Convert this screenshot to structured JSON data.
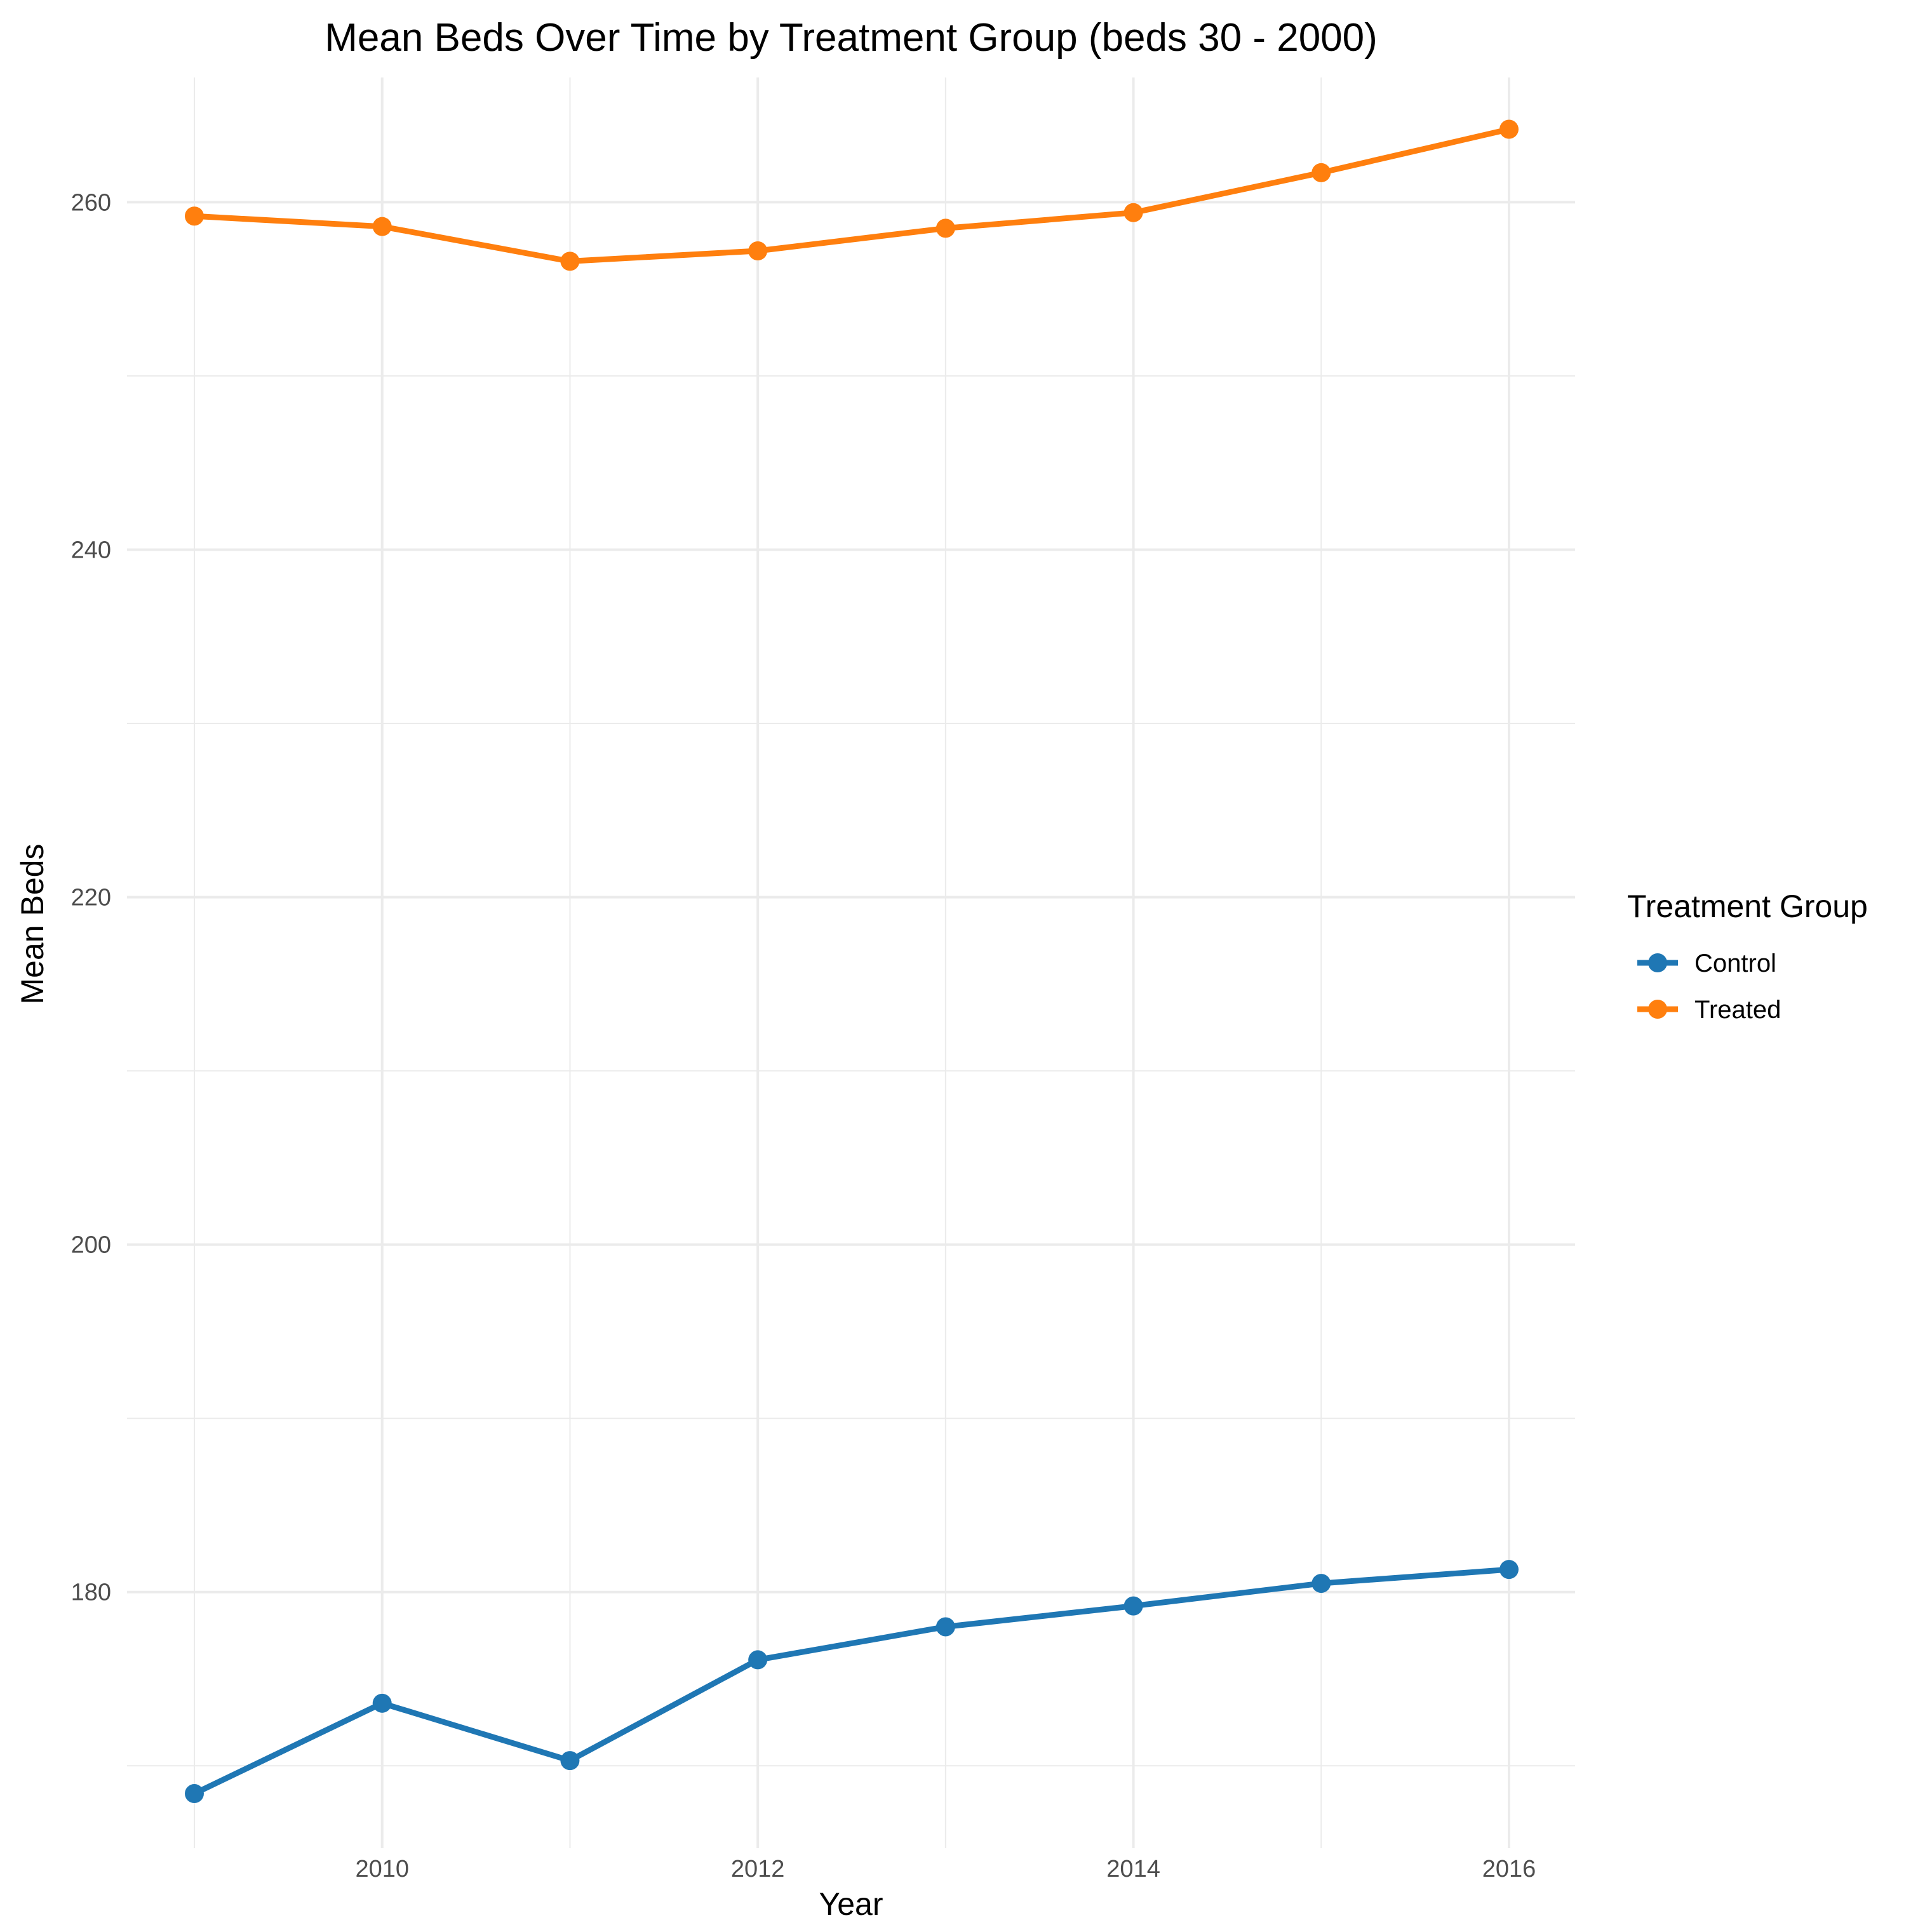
{
  "chart_data": {
    "type": "line",
    "title": "Mean Beds Over Time by Treatment Group (beds 30 - 2000)",
    "xlabel": "Year",
    "ylabel": "Mean Beds",
    "x": [
      2009,
      2010,
      2011,
      2012,
      2013,
      2014,
      2015,
      2016
    ],
    "xlim": [
      2009,
      2016
    ],
    "ylim": [
      168,
      262.5
    ],
    "x_ticks": [
      2010,
      2012,
      2014,
      2016
    ],
    "y_ticks": [
      180,
      200,
      220,
      240,
      260
    ],
    "grid": true,
    "legend": {
      "title": "Treatment Group",
      "position": "right",
      "entries": [
        "Control",
        "Treated"
      ]
    },
    "series": [
      {
        "name": "Control",
        "color": "#1f77b4",
        "values": [
          168.4,
          173.6,
          170.3,
          176.1,
          178.0,
          179.2,
          180.5,
          181.3
        ]
      },
      {
        "name": "Treated",
        "color": "#ff7f0e",
        "values": [
          259.2,
          258.6,
          256.6,
          257.2,
          258.5,
          259.4,
          261.7,
          264.2
        ]
      }
    ]
  }
}
